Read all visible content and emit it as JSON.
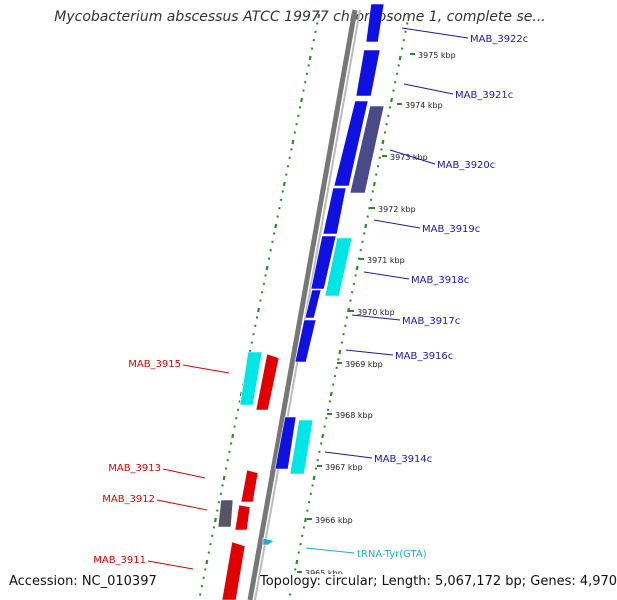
{
  "title": "Mycobacterium abscessus ATCC 19977 chromosome 1, complete se...",
  "footer": {
    "accession": "Accession: NC_010397",
    "topology": "Topology: circular; Length: 5,067,172 bp; Genes: 4,970"
  },
  "colors": {
    "forward_gene": "#e00000",
    "reverse_gene": "#1010e0",
    "highlight_gene": "#00e5e5",
    "pseudo_gene": "#555566",
    "dark_gene": "#4a4a8a",
    "trna": "#22aadd",
    "tick": "#2a8a2a",
    "left_label": "#dd0000",
    "right_label": "#1a1aaa",
    "trna_label": "#22aadd",
    "backbone": "#888888"
  },
  "scale": {
    "tick_labels": [
      "3975 kbp",
      "3974 kbp",
      "3973 kbp",
      "3972 kbp",
      "3971 kbp",
      "3970 kbp",
      "3969 kbp",
      "3968 kbp",
      "3967 kbp",
      "3966 kbp",
      "3965 kbp"
    ]
  },
  "genes_right": [
    {
      "name": "MAB_3922c"
    },
    {
      "name": "MAB_3921c"
    },
    {
      "name": "MAB_3920c"
    },
    {
      "name": "MAB_3919c"
    },
    {
      "name": "MAB_3918c"
    },
    {
      "name": "MAB_3917c"
    },
    {
      "name": "MAB_3916c"
    },
    {
      "name": "MAB_3914c"
    }
  ],
  "genes_left": [
    {
      "name": "MAB_3915"
    },
    {
      "name": "MAB_3913"
    },
    {
      "name": "MAB_3912"
    },
    {
      "name": "MAB_3911"
    }
  ],
  "trna": {
    "name": "tRNA-Tyr(GTA)"
  }
}
